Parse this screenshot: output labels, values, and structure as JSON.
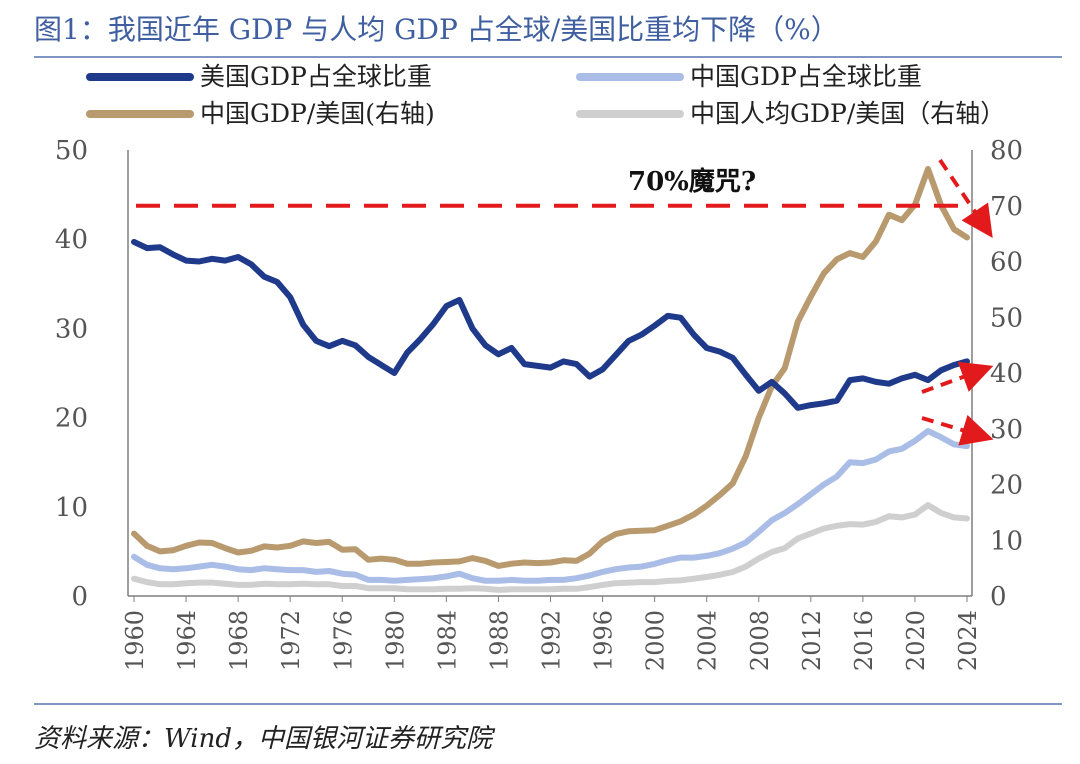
{
  "title": "图1：我国近年 GDP 与人均 GDP 占全球/美国比重均下降（%）",
  "source": "资料来源：Wind，中国银河证券研究院",
  "chart_data": {
    "type": "line",
    "x": [
      1960,
      1961,
      1962,
      1963,
      1964,
      1965,
      1966,
      1967,
      1968,
      1969,
      1970,
      1971,
      1972,
      1973,
      1974,
      1975,
      1976,
      1977,
      1978,
      1979,
      1980,
      1981,
      1982,
      1983,
      1984,
      1985,
      1986,
      1987,
      1988,
      1989,
      1990,
      1991,
      1992,
      1993,
      1994,
      1995,
      1996,
      1997,
      1998,
      1999,
      2000,
      2001,
      2002,
      2003,
      2004,
      2005,
      2006,
      2007,
      2008,
      2009,
      2010,
      2011,
      2012,
      2013,
      2014,
      2015,
      2016,
      2017,
      2018,
      2019,
      2020,
      2021,
      2022,
      2023,
      2024
    ],
    "x_tick_labels": [
      "1960",
      "1964",
      "1968",
      "1972",
      "1976",
      "1980",
      "1984",
      "1988",
      "1992",
      "1996",
      "2000",
      "2004",
      "2008",
      "2012",
      "2016",
      "2020",
      "2024"
    ],
    "left_axis": {
      "ylim": [
        0,
        50
      ],
      "ticks": [
        "0",
        "10",
        "20",
        "30",
        "40",
        "50"
      ]
    },
    "right_axis": {
      "ylim": [
        0,
        80
      ],
      "ticks": [
        "0",
        "10",
        "20",
        "30",
        "40",
        "50",
        "60",
        "70",
        "80"
      ]
    },
    "series": [
      {
        "name": "美国GDP占全球比重",
        "axis": "left",
        "color": "#1f3a8a",
        "values": [
          39.7,
          39.0,
          39.1,
          38.3,
          37.6,
          37.5,
          37.8,
          37.6,
          38.0,
          37.2,
          35.8,
          35.2,
          33.5,
          30.4,
          28.6,
          28.0,
          28.6,
          28.1,
          26.8,
          25.9,
          25.0,
          27.3,
          28.8,
          30.5,
          32.5,
          33.2,
          30.0,
          28.1,
          27.1,
          27.8,
          26.0,
          25.8,
          25.6,
          26.3,
          26.0,
          24.6,
          25.4,
          27.0,
          28.6,
          29.3,
          30.3,
          31.4,
          31.2,
          29.3,
          27.8,
          27.4,
          26.7,
          24.8,
          23.0,
          24.0,
          22.7,
          21.1,
          21.4,
          21.6,
          21.9,
          24.2,
          24.4,
          24.0,
          23.8,
          24.4,
          24.8,
          24.2,
          25.3,
          25.9,
          26.3
        ]
      },
      {
        "name": "中国GDP占全球比重",
        "axis": "left",
        "color": "#a9bde6",
        "values": [
          4.4,
          3.5,
          3.1,
          3.0,
          3.1,
          3.3,
          3.5,
          3.3,
          3.0,
          2.9,
          3.1,
          3.0,
          2.9,
          2.9,
          2.7,
          2.8,
          2.5,
          2.4,
          1.8,
          1.8,
          1.7,
          1.8,
          1.9,
          2.0,
          2.2,
          2.5,
          2.0,
          1.7,
          1.7,
          1.8,
          1.7,
          1.7,
          1.8,
          1.8,
          2.0,
          2.3,
          2.7,
          3.0,
          3.2,
          3.3,
          3.6,
          4.0,
          4.3,
          4.3,
          4.5,
          4.8,
          5.3,
          6.0,
          7.2,
          8.5,
          9.3,
          10.3,
          11.4,
          12.5,
          13.4,
          15.0,
          14.9,
          15.3,
          16.2,
          16.5,
          17.4,
          18.5,
          17.8,
          17.0,
          16.8
        ]
      },
      {
        "name": "中国GDP/美国(右轴)",
        "axis": "right",
        "color": "#b89a6e",
        "values": [
          11.2,
          9.0,
          8.0,
          8.2,
          9.0,
          9.6,
          9.5,
          8.6,
          7.8,
          8.1,
          8.9,
          8.7,
          9.0,
          9.8,
          9.5,
          9.7,
          8.3,
          8.4,
          6.5,
          6.7,
          6.5,
          5.8,
          5.8,
          6.0,
          6.1,
          6.2,
          6.8,
          6.3,
          5.4,
          5.8,
          6.0,
          5.9,
          6.0,
          6.4,
          6.3,
          7.6,
          9.8,
          11.1,
          11.6,
          11.7,
          11.8,
          12.6,
          13.4,
          14.6,
          16.2,
          18.1,
          20.2,
          25.1,
          32.0,
          37.6,
          40.9,
          49.2,
          53.7,
          57.9,
          60.4,
          61.5,
          60.8,
          63.6,
          68.4,
          67.4,
          70.2,
          76.6,
          70.1,
          65.8,
          64.3
        ]
      },
      {
        "name": "中国人均GDP/美国（右轴）",
        "axis": "right",
        "color": "#cfcfcf",
        "values": [
          3.1,
          2.5,
          2.1,
          2.1,
          2.3,
          2.4,
          2.4,
          2.2,
          2.0,
          2.0,
          2.2,
          2.1,
          2.1,
          2.2,
          2.1,
          2.1,
          1.8,
          1.8,
          1.4,
          1.4,
          1.4,
          1.2,
          1.2,
          1.2,
          1.3,
          1.3,
          1.4,
          1.3,
          1.1,
          1.2,
          1.2,
          1.2,
          1.2,
          1.3,
          1.3,
          1.6,
          2.0,
          2.3,
          2.4,
          2.5,
          2.5,
          2.7,
          2.8,
          3.1,
          3.4,
          3.8,
          4.3,
          5.3,
          6.7,
          7.9,
          8.6,
          10.3,
          11.2,
          12.1,
          12.6,
          12.9,
          12.8,
          13.3,
          14.3,
          14.1,
          14.6,
          16.3,
          14.9,
          14.1,
          13.9
        ]
      }
    ],
    "annotations": [
      {
        "type": "hline",
        "axis": "right",
        "y": 70,
        "style": "dashed",
        "color": "#e31a1c"
      },
      {
        "type": "text",
        "text": "70%魔咒?"
      },
      {
        "type": "arrow",
        "direction": "down-right",
        "color": "#e31a1c"
      },
      {
        "type": "arrow",
        "direction": "up-right",
        "color": "#e31a1c"
      },
      {
        "type": "arrow",
        "direction": "down-right",
        "color": "#e31a1c"
      }
    ],
    "legend": "top, two columns",
    "grid": false
  }
}
